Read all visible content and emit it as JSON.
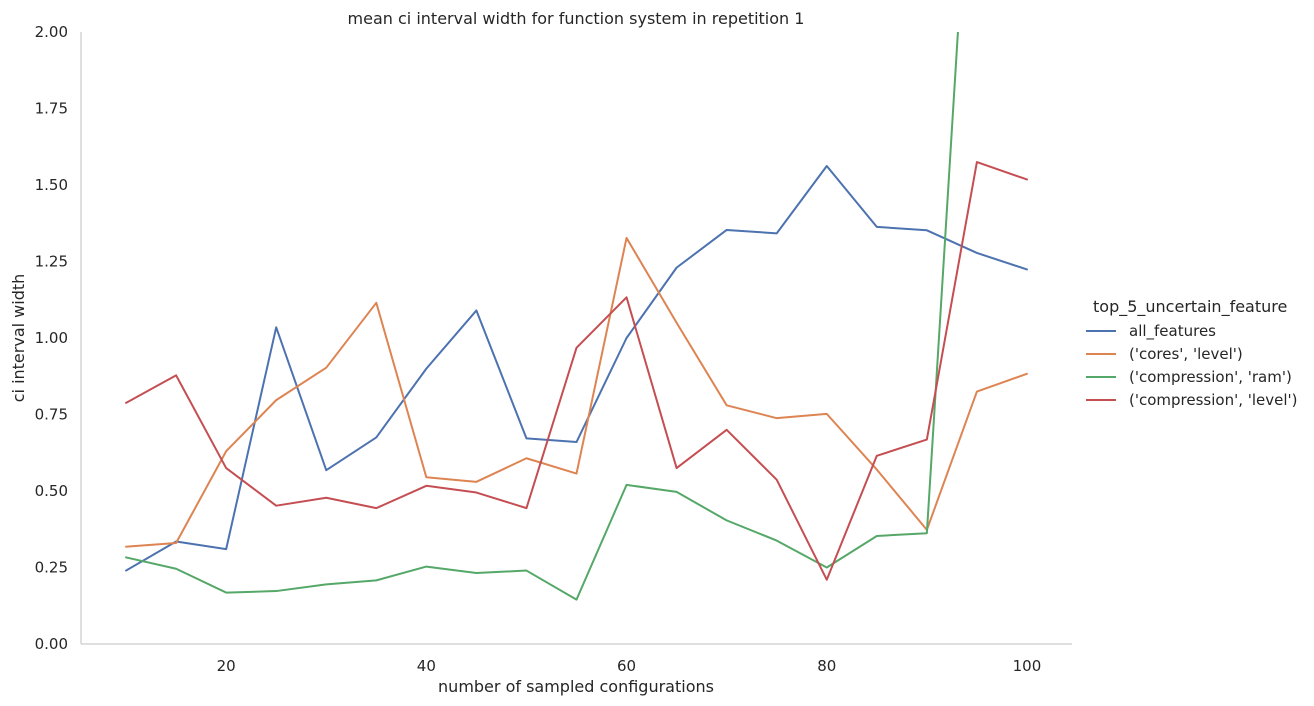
{
  "chart_data": {
    "type": "line",
    "title": "mean ci interval width for function system in repetition 1",
    "xlabel": "number of sampled configurations",
    "ylabel": "ci interval width",
    "xlim": [
      5.5,
      104.5
    ],
    "ylim": [
      0,
      2.0
    ],
    "xticks": [
      20,
      40,
      60,
      80,
      100
    ],
    "yticks": [
      0.0,
      0.25,
      0.5,
      0.75,
      1.0,
      1.25,
      1.5,
      1.75,
      2.0
    ],
    "grid": false,
    "legend": {
      "title": "top_5_uncertain_feature",
      "placement": "right"
    },
    "x": [
      10,
      15,
      20,
      25,
      30,
      35,
      40,
      45,
      50,
      55,
      60,
      65,
      70,
      75,
      80,
      85,
      90,
      95,
      100
    ],
    "series": [
      {
        "name": "all_features",
        "color": "#4c72b0",
        "values": [
          0.24,
          0.335,
          0.31,
          1.035,
          0.568,
          0.675,
          0.9,
          1.09,
          0.672,
          0.66,
          1.0,
          1.23,
          1.353,
          1.342,
          1.562,
          1.363,
          1.352,
          1.278,
          1.224
        ]
      },
      {
        "name": "('cores', 'level')",
        "color": "#dd8452",
        "values": [
          0.318,
          0.33,
          0.63,
          0.797,
          0.903,
          1.115,
          0.545,
          0.53,
          0.607,
          0.557,
          1.327,
          1.05,
          0.78,
          0.738,
          0.752,
          0.57,
          0.373,
          0.825,
          0.883
        ]
      },
      {
        "name": "('compression', 'ram')",
        "color": "#55a868",
        "values": [
          0.283,
          0.246,
          0.168,
          0.173,
          0.195,
          0.208,
          0.253,
          0.232,
          0.24,
          0.145,
          0.52,
          0.497,
          0.404,
          0.338,
          0.25,
          0.353,
          0.362,
          3.0,
          null
        ]
      },
      {
        "name": "('compression', 'level')",
        "color": "#c44e52",
        "values": [
          0.788,
          0.878,
          0.575,
          0.452,
          0.478,
          0.444,
          0.517,
          0.495,
          0.444,
          0.968,
          1.133,
          0.575,
          0.7,
          0.537,
          0.21,
          0.615,
          0.668,
          1.575,
          1.518
        ]
      }
    ]
  }
}
